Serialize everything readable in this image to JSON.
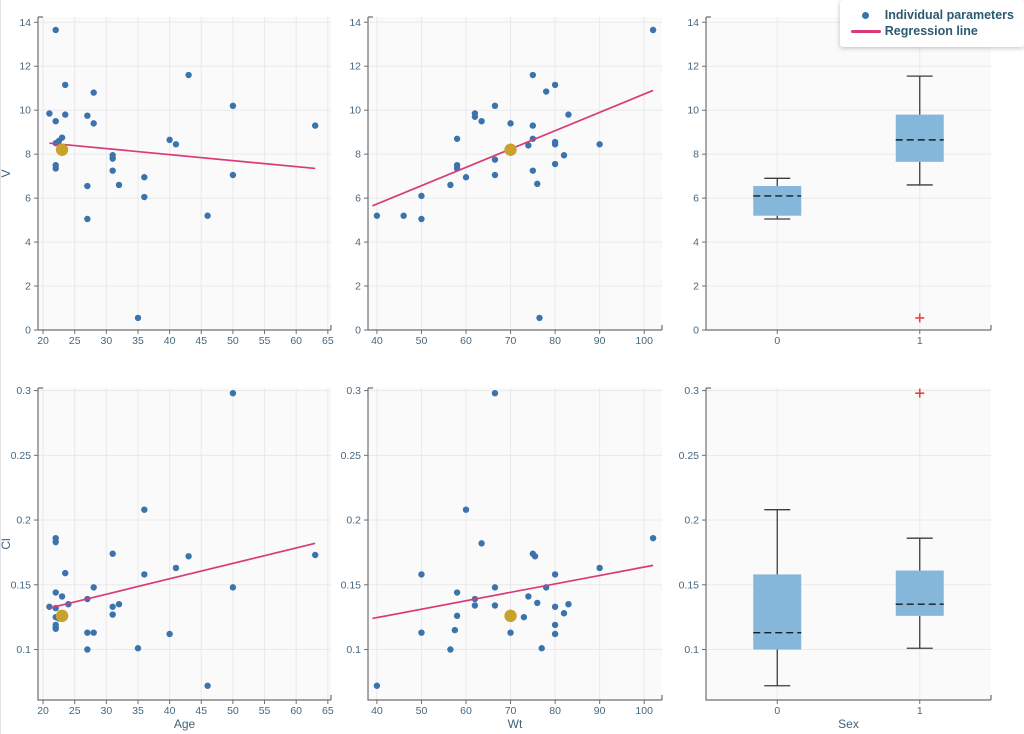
{
  "page": {
    "background": "#ffffff"
  },
  "colors": {
    "panel_background": "#fafafa",
    "gridline": "#e9e9ec",
    "spine": "#6f6f6f",
    "tick_text": "#47687f",
    "axis_title_text": "#3f6177",
    "point": "#3b74ad",
    "typical_point": "#c9a22b",
    "regression_line": "#d93b78",
    "box_fill": "#85b7da",
    "whisker": "#3c3c3c",
    "median": "#1c1c1c",
    "outlier": "#e8453f",
    "legend_text": "#2c5a70"
  },
  "legend": {
    "position": "top-right",
    "items": [
      {
        "label": "Individual parameters",
        "type": "dot",
        "color": "#3b74ad"
      },
      {
        "label": "Regression line",
        "type": "line",
        "color": "#d93b78"
      }
    ]
  },
  "chart_data": [
    {
      "type": "scatter",
      "id": "v-vs-age",
      "title": "",
      "xlabel": "",
      "ylabel": "V",
      "xlim": [
        19.2,
        65.5
      ],
      "ylim": [
        0,
        14.24
      ],
      "grid": true,
      "x_ticks": {
        "values": [
          20,
          25,
          30,
          35,
          40,
          45,
          50,
          55,
          60,
          65
        ],
        "labels": [
          "20",
          "25",
          "30",
          "35",
          "40",
          "45",
          "50",
          "55",
          "60",
          "65"
        ]
      },
      "y_ticks": {
        "values": [
          0,
          2,
          4,
          6,
          8,
          10,
          12,
          14
        ],
        "labels": [
          "0",
          "2",
          "4",
          "6",
          "8",
          "10",
          "12",
          "14"
        ]
      },
      "points": [
        [
          22,
          13.65
        ],
        [
          43,
          11.6
        ],
        [
          23.5,
          11.15
        ],
        [
          28,
          10.8
        ],
        [
          50,
          10.2
        ],
        [
          21,
          9.85
        ],
        [
          23.5,
          9.8
        ],
        [
          27,
          9.75
        ],
        [
          22,
          9.5
        ],
        [
          28,
          9.4
        ],
        [
          63,
          9.3
        ],
        [
          23,
          8.75
        ],
        [
          22.5,
          8.6
        ],
        [
          40,
          8.65
        ],
        [
          41,
          8.45
        ],
        [
          22,
          8.5
        ],
        [
          31,
          7.95
        ],
        [
          31,
          7.8
        ],
        [
          22,
          7.5
        ],
        [
          22,
          7.35
        ],
        [
          31,
          7.25
        ],
        [
          50,
          7.05
        ],
        [
          36,
          6.95
        ],
        [
          32,
          6.6
        ],
        [
          27,
          6.55
        ],
        [
          36,
          6.05
        ],
        [
          46,
          5.2
        ],
        [
          27,
          5.05
        ],
        [
          35,
          0.55
        ]
      ],
      "typical_point": [
        23,
        8.2
      ],
      "regression": [
        [
          21,
          8.5
        ],
        [
          63,
          7.35
        ]
      ]
    },
    {
      "type": "scatter",
      "id": "v-vs-wt",
      "title": "",
      "xlabel": "",
      "ylabel": "",
      "xlim": [
        38,
        104
      ],
      "ylim": [
        0,
        14.24
      ],
      "grid": true,
      "x_ticks": {
        "values": [
          40,
          50,
          60,
          70,
          80,
          90,
          100
        ],
        "labels": [
          "40",
          "50",
          "60",
          "70",
          "80",
          "90",
          "100"
        ]
      },
      "y_ticks": {
        "values": [
          0,
          2,
          4,
          6,
          8,
          10,
          12,
          14
        ],
        "labels": [
          "0",
          "2",
          "4",
          "6",
          "8",
          "10",
          "12",
          "14"
        ]
      },
      "points": [
        [
          102,
          13.65
        ],
        [
          75,
          11.6
        ],
        [
          80,
          11.15
        ],
        [
          78,
          10.85
        ],
        [
          66.5,
          10.2
        ],
        [
          83,
          9.8
        ],
        [
          62,
          9.85
        ],
        [
          62,
          9.7
        ],
        [
          63.5,
          9.5
        ],
        [
          70,
          9.4
        ],
        [
          75,
          9.3
        ],
        [
          58,
          8.7
        ],
        [
          75,
          8.7
        ],
        [
          80,
          8.55
        ],
        [
          80,
          8.45
        ],
        [
          90,
          8.45
        ],
        [
          74,
          8.4
        ],
        [
          82,
          7.95
        ],
        [
          66.5,
          7.75
        ],
        [
          58,
          7.5
        ],
        [
          58,
          7.35
        ],
        [
          80,
          7.55
        ],
        [
          75,
          7.25
        ],
        [
          66.5,
          7.05
        ],
        [
          60,
          6.95
        ],
        [
          76,
          6.65
        ],
        [
          56.5,
          6.6
        ],
        [
          50,
          6.1
        ],
        [
          46,
          5.2
        ],
        [
          50,
          5.05
        ],
        [
          40,
          5.2
        ],
        [
          76.5,
          0.55
        ]
      ],
      "typical_point": [
        70,
        8.2
      ],
      "regression": [
        [
          39,
          5.65
        ],
        [
          102,
          10.9
        ]
      ]
    },
    {
      "type": "box",
      "id": "v-vs-sex",
      "title": "",
      "xlabel": "",
      "ylabel": "",
      "ylim": [
        0,
        14.24
      ],
      "grid": true,
      "categories": [
        "0",
        "1"
      ],
      "y_ticks": {
        "values": [
          0,
          2,
          4,
          6,
          8,
          10,
          12,
          14
        ],
        "labels": [
          "0",
          "2",
          "4",
          "6",
          "8",
          "10",
          "12",
          "14"
        ]
      },
      "boxes": [
        {
          "low": 5.05,
          "q1": 5.2,
          "median": 6.1,
          "q3": 6.55,
          "high": 6.9,
          "outliers": []
        },
        {
          "low": 6.6,
          "q1": 7.65,
          "median": 8.65,
          "q3": 9.8,
          "high": 11.55,
          "outliers": [
            13.65,
            0.55
          ]
        }
      ]
    },
    {
      "type": "scatter",
      "id": "cl-vs-age",
      "title": "",
      "xlabel": "Age",
      "ylabel": "Cl",
      "xlim": [
        19.2,
        65.5
      ],
      "ylim": [
        0.061,
        0.302
      ],
      "grid": true,
      "x_ticks": {
        "values": [
          20,
          25,
          30,
          35,
          40,
          45,
          50,
          55,
          60,
          65
        ],
        "labels": [
          "20",
          "25",
          "30",
          "35",
          "40",
          "45",
          "50",
          "55",
          "60",
          "65"
        ]
      },
      "y_ticks": {
        "values": [
          0.1,
          0.15,
          0.2,
          0.25,
          0.3
        ],
        "labels": [
          "0.1",
          "0.15",
          "0.2",
          "0.25",
          "0.3"
        ]
      },
      "points": [
        [
          50,
          0.298
        ],
        [
          36,
          0.208
        ],
        [
          22,
          0.186
        ],
        [
          22,
          0.183
        ],
        [
          31,
          0.174
        ],
        [
          63,
          0.173
        ],
        [
          43,
          0.172
        ],
        [
          41,
          0.163
        ],
        [
          23.5,
          0.159
        ],
        [
          36,
          0.158
        ],
        [
          28,
          0.148
        ],
        [
          50,
          0.148
        ],
        [
          22,
          0.144
        ],
        [
          23,
          0.141
        ],
        [
          27,
          0.139
        ],
        [
          24,
          0.135
        ],
        [
          32,
          0.135
        ],
        [
          21,
          0.133
        ],
        [
          31,
          0.133
        ],
        [
          22,
          0.132
        ],
        [
          31,
          0.127
        ],
        [
          22,
          0.125
        ],
        [
          22.5,
          0.124
        ],
        [
          22,
          0.119
        ],
        [
          22,
          0.117
        ],
        [
          22,
          0.116
        ],
        [
          27,
          0.113
        ],
        [
          28,
          0.113
        ],
        [
          40,
          0.112
        ],
        [
          35,
          0.101
        ],
        [
          27,
          0.1
        ],
        [
          46,
          0.072
        ]
      ],
      "typical_point": [
        23,
        0.126
      ],
      "regression": [
        [
          21,
          0.132
        ],
        [
          63,
          0.182
        ]
      ]
    },
    {
      "type": "scatter",
      "id": "cl-vs-wt",
      "title": "",
      "xlabel": "Wt",
      "ylabel": "",
      "xlim": [
        38,
        104
      ],
      "ylim": [
        0.061,
        0.302
      ],
      "grid": true,
      "x_ticks": {
        "values": [
          40,
          50,
          60,
          70,
          80,
          90,
          100
        ],
        "labels": [
          "40",
          "50",
          "60",
          "70",
          "80",
          "90",
          "100"
        ]
      },
      "y_ticks": {
        "values": [
          0.1,
          0.15,
          0.2,
          0.25,
          0.3
        ],
        "labels": [
          "0.1",
          "0.15",
          "0.2",
          "0.25",
          "0.3"
        ]
      },
      "points": [
        [
          66.5,
          0.298
        ],
        [
          60,
          0.208
        ],
        [
          102,
          0.186
        ],
        [
          63.5,
          0.182
        ],
        [
          75,
          0.174
        ],
        [
          75.5,
          0.172
        ],
        [
          90,
          0.163
        ],
        [
          50,
          0.158
        ],
        [
          80,
          0.158
        ],
        [
          66.5,
          0.148
        ],
        [
          78,
          0.148
        ],
        [
          58,
          0.144
        ],
        [
          74,
          0.141
        ],
        [
          62,
          0.139
        ],
        [
          76,
          0.136
        ],
        [
          83,
          0.135
        ],
        [
          62,
          0.134
        ],
        [
          66.5,
          0.134
        ],
        [
          80,
          0.133
        ],
        [
          82,
          0.128
        ],
        [
          58,
          0.126
        ],
        [
          73,
          0.125
        ],
        [
          80,
          0.119
        ],
        [
          57.5,
          0.115
        ],
        [
          50,
          0.113
        ],
        [
          70,
          0.113
        ],
        [
          80,
          0.112
        ],
        [
          77,
          0.101
        ],
        [
          56.5,
          0.1
        ],
        [
          40,
          0.072
        ]
      ],
      "typical_point": [
        70,
        0.126
      ],
      "regression": [
        [
          39,
          0.124
        ],
        [
          102,
          0.165
        ]
      ]
    },
    {
      "type": "box",
      "id": "cl-vs-sex",
      "title": "",
      "xlabel": "Sex",
      "ylabel": "",
      "ylim": [
        0.061,
        0.302
      ],
      "grid": true,
      "categories": [
        "0",
        "1"
      ],
      "y_ticks": {
        "values": [
          0.1,
          0.15,
          0.2,
          0.25,
          0.3
        ],
        "labels": [
          "0.1",
          "0.15",
          "0.2",
          "0.25",
          "0.3"
        ]
      },
      "boxes": [
        {
          "low": 0.072,
          "q1": 0.1,
          "median": 0.113,
          "q3": 0.158,
          "high": 0.208,
          "outliers": []
        },
        {
          "low": 0.101,
          "q1": 0.126,
          "median": 0.135,
          "q3": 0.161,
          "high": 0.186,
          "outliers": [
            0.298
          ]
        }
      ]
    }
  ]
}
